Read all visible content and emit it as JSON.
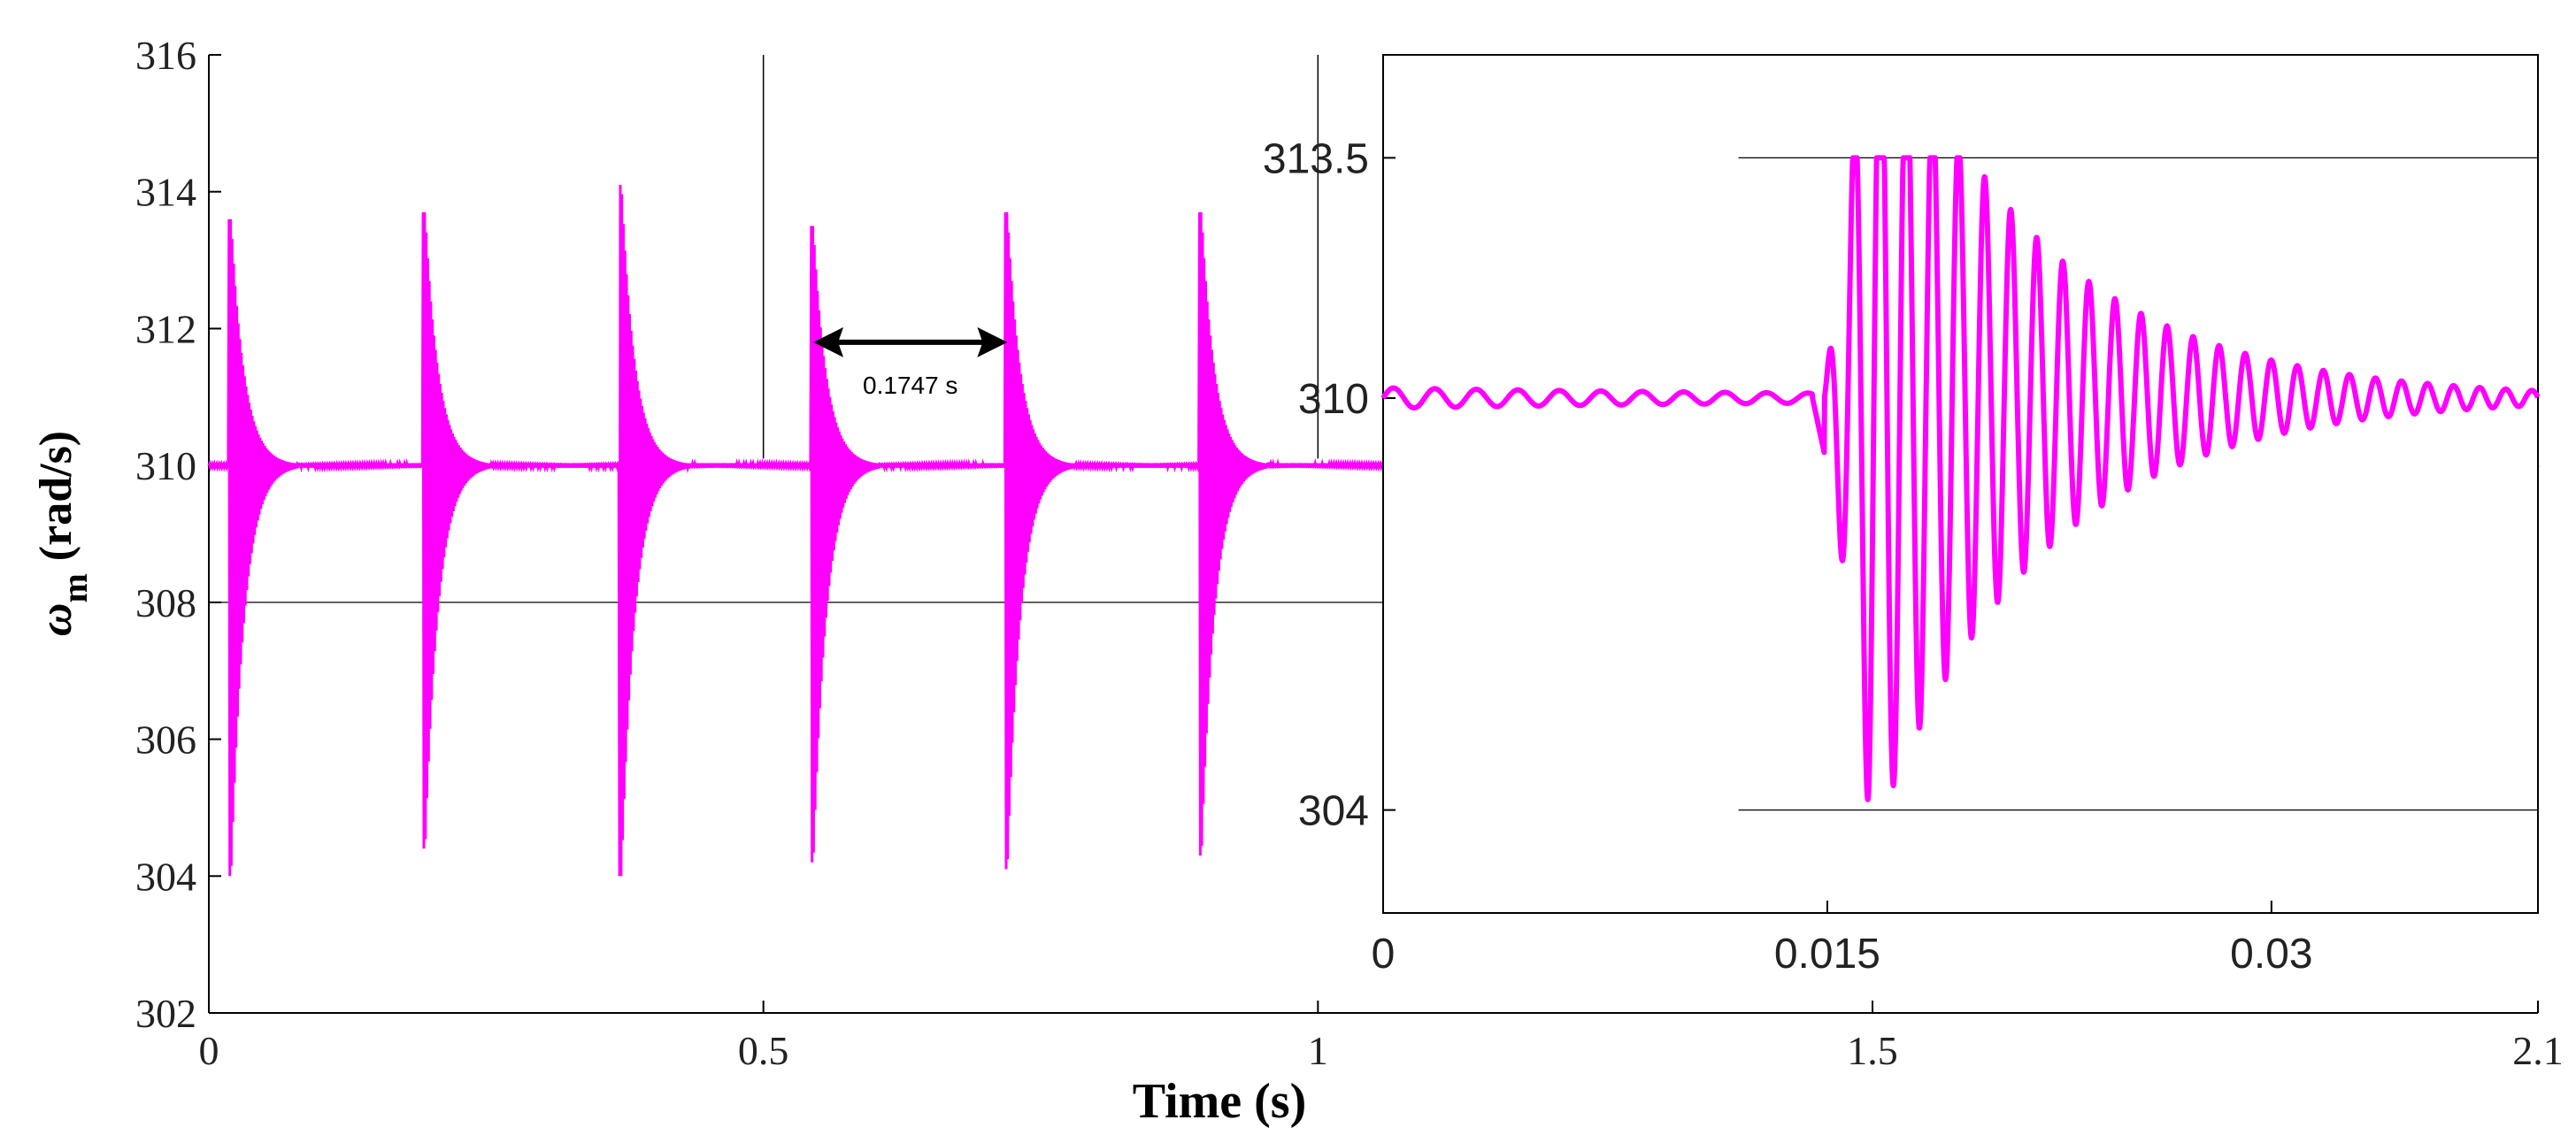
{
  "chart_data": [
    {
      "id": "main",
      "type": "line",
      "xlabel": "Time (s)",
      "ylabel_symbol": "ω",
      "ylabel_subscript": "m",
      "ylabel_unit": "(rad/s)",
      "xlim": [
        0,
        2.1
      ],
      "ylim": [
        302,
        316
      ],
      "xticks": [
        0,
        0.5,
        1,
        1.5,
        2.1
      ],
      "xtick_labels": [
        "0",
        "0.5",
        "1",
        "1.5",
        "2.1"
      ],
      "yticks": [
        302,
        304,
        306,
        308,
        310,
        312,
        314,
        316
      ],
      "ytick_labels": [
        "302",
        "304",
        "306",
        "308",
        "310",
        "312",
        "314",
        "316"
      ],
      "color": "#ff00ff",
      "steady_value": 310,
      "transients": [
        {
          "t": 0.02,
          "max": 313.6,
          "min": 304.0
        },
        {
          "t": 0.195,
          "max": 313.7,
          "min": 304.4
        },
        {
          "t": 0.372,
          "max": 314.1,
          "min": 304.0
        },
        {
          "t": 0.545,
          "max": 313.5,
          "min": 304.2
        },
        {
          "t": 0.72,
          "max": 313.7,
          "min": 304.1
        },
        {
          "t": 0.895,
          "max": 313.7,
          "min": 304.3
        }
      ],
      "annotation": {
        "text": "0.1747 s",
        "from_t": 0.545,
        "to_t": 0.72,
        "at_value": 311.8
      },
      "zoom_window": {
        "t_start": 0.5,
        "t_end": 1.0,
        "value": 308
      }
    },
    {
      "id": "inset",
      "type": "line",
      "xlim": [
        0,
        0.039
      ],
      "ylim": [
        302.5,
        315.0
      ],
      "xticks": [
        0,
        0.015,
        0.03
      ],
      "xtick_labels": [
        "0",
        "0.015",
        "0.03"
      ],
      "yticks": [
        304,
        310,
        313.5
      ],
      "ytick_labels": [
        "304",
        "310",
        "313.5"
      ],
      "color": "#ff00ff",
      "steady_value": 310,
      "event_time": 0.0145,
      "peak_max": 313.5,
      "peak_min": 304.0
    }
  ]
}
